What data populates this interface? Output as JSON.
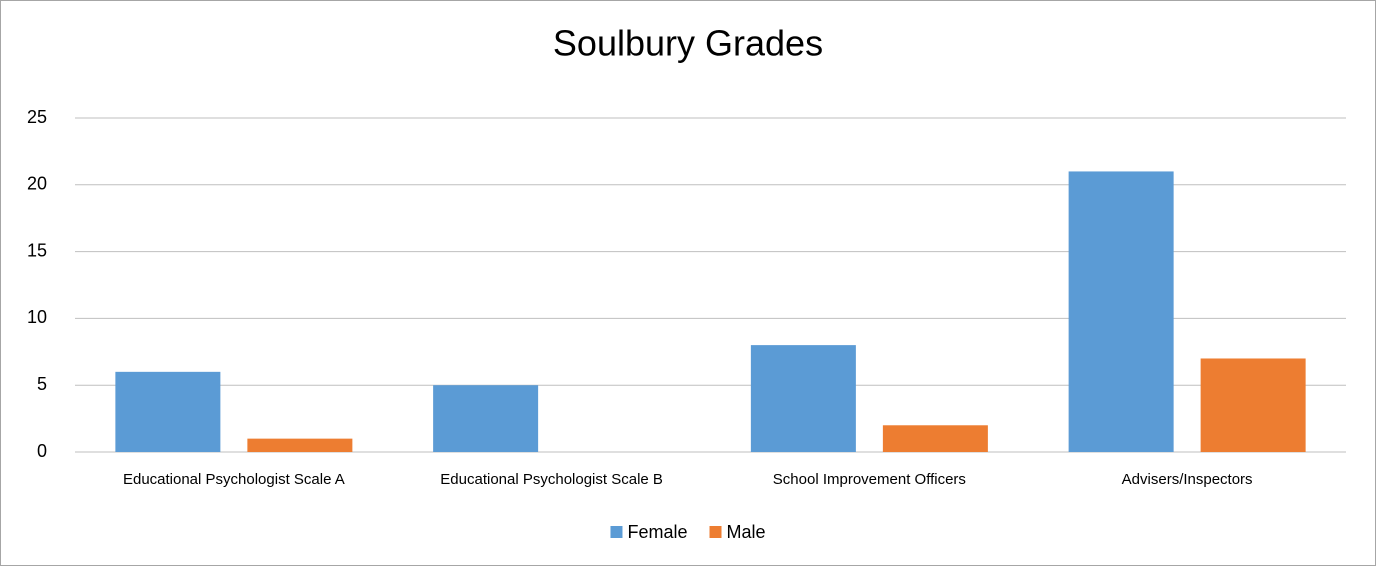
{
  "chart_data": {
    "type": "bar",
    "title": "Soulbury Grades",
    "categories": [
      "Educational Psychologist Scale A",
      "Educational Psychologist Scale B",
      "School Improvement Officers",
      "Advisers/Inspectors"
    ],
    "series": [
      {
        "name": "Female",
        "color": "#5b9bd5",
        "values": [
          6,
          5,
          8,
          21
        ]
      },
      {
        "name": "Male",
        "color": "#ed7d31",
        "values": [
          1,
          0,
          2,
          7
        ]
      }
    ],
    "ylim": [
      0,
      25
    ],
    "yticks": [
      0,
      5,
      10,
      15,
      20,
      25
    ],
    "grid": true,
    "legend": "bottom"
  }
}
